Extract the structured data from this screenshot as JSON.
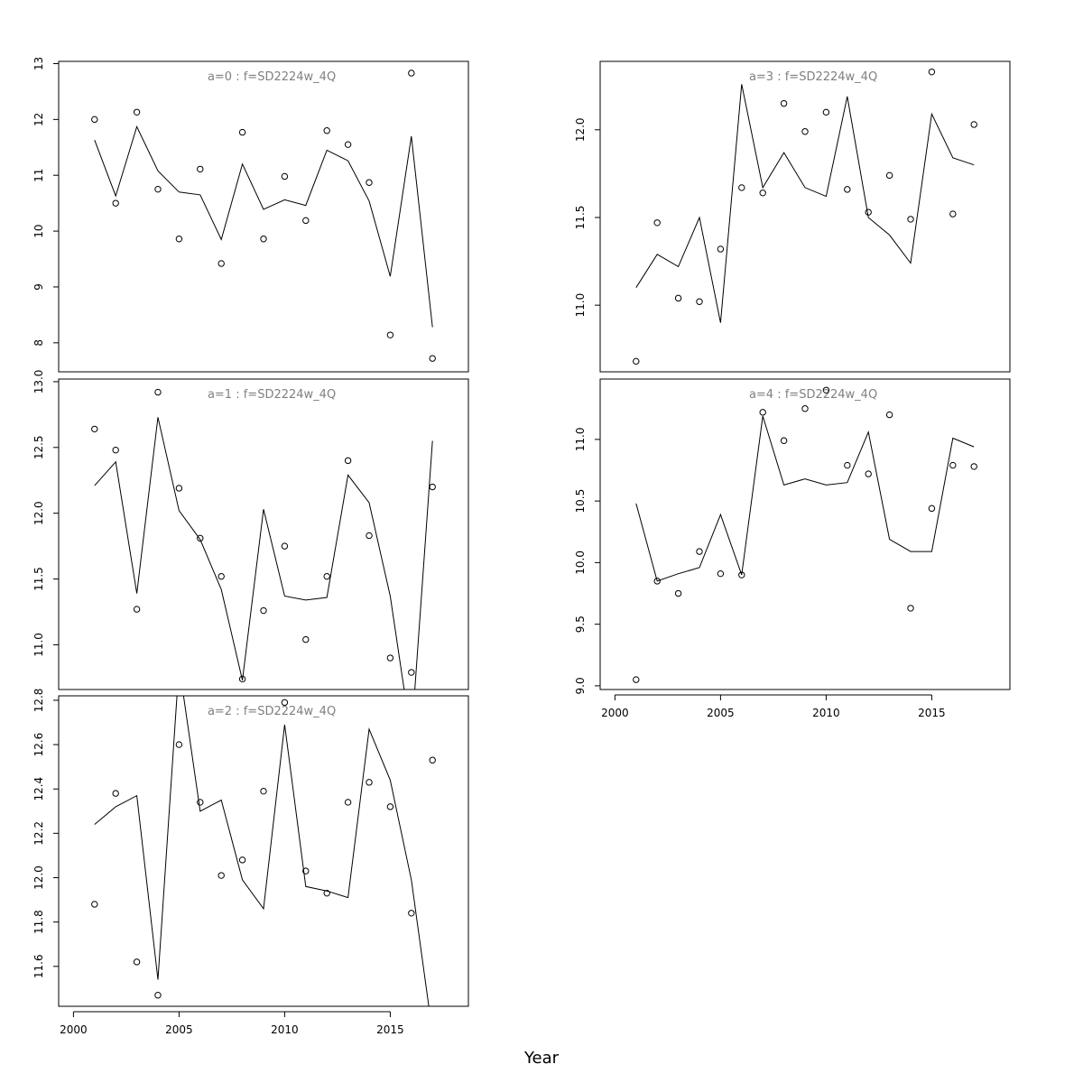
{
  "figure": {
    "xlabel": "Year"
  },
  "chart_data": [
    {
      "type": "scatter",
      "title": "a=0  :  f=SD2224w_4Q",
      "x": [
        2001,
        2002,
        2003,
        2004,
        2005,
        2006,
        2007,
        2008,
        2009,
        2010,
        2011,
        2012,
        2013,
        2014,
        2015,
        2016,
        2017
      ],
      "series": [
        {
          "kind": "points",
          "values": [
            12.0,
            10.5,
            12.13,
            10.75,
            9.86,
            11.11,
            9.42,
            11.77,
            9.86,
            10.98,
            10.19,
            11.8,
            11.55,
            10.87,
            8.14,
            12.83,
            7.72
          ]
        },
        {
          "kind": "line",
          "values": [
            11.63,
            10.63,
            11.87,
            11.08,
            10.7,
            10.65,
            9.85,
            11.2,
            10.39,
            10.56,
            10.46,
            11.45,
            11.26,
            10.54,
            9.19,
            11.7,
            8.28
          ]
        }
      ],
      "xlim": [
        1999.3,
        2018.7
      ],
      "ylim": [
        7.48,
        13.04
      ],
      "yticks": [
        8,
        9,
        10,
        11,
        12,
        13
      ],
      "ytick_labels": [
        "8",
        "9",
        "10",
        "11",
        "12",
        "13"
      ],
      "xticks_shown": false
    },
    {
      "type": "scatter",
      "title": "a=1  :  f=SD2224w_4Q",
      "x": [
        2001,
        2002,
        2003,
        2004,
        2005,
        2006,
        2007,
        2008,
        2009,
        2010,
        2011,
        2012,
        2013,
        2014,
        2015,
        2016,
        2017
      ],
      "series": [
        {
          "kind": "points",
          "values": [
            12.64,
            12.48,
            11.27,
            12.92,
            12.19,
            11.81,
            11.52,
            10.74,
            11.26,
            11.75,
            11.04,
            11.52,
            12.4,
            11.83,
            10.9,
            10.79,
            12.2
          ]
        },
        {
          "kind": "line",
          "values": [
            12.21,
            12.39,
            11.39,
            12.73,
            12.02,
            11.8,
            11.42,
            10.73,
            12.03,
            11.37,
            11.34,
            11.36,
            12.29,
            12.08,
            11.37,
            10.29,
            12.55
          ]
        }
      ],
      "xlim": [
        1999.3,
        2018.7
      ],
      "ylim": [
        10.66,
        13.02
      ],
      "yticks": [
        11.0,
        11.5,
        12.0,
        12.5,
        13.0
      ],
      "ytick_labels": [
        "11.0",
        "11.5",
        "12.0",
        "12.5",
        "13.0"
      ],
      "xticks_shown": false
    },
    {
      "type": "scatter",
      "title": "a=2  :  f=SD2224w_4Q",
      "x": [
        2001,
        2002,
        2003,
        2004,
        2005,
        2006,
        2007,
        2008,
        2009,
        2010,
        2011,
        2012,
        2013,
        2014,
        2015,
        2016,
        2017
      ],
      "series": [
        {
          "kind": "points",
          "values": [
            11.88,
            12.38,
            11.62,
            11.47,
            12.6,
            12.34,
            12.01,
            12.08,
            12.39,
            12.79,
            12.03,
            11.93,
            12.34,
            12.43,
            12.32,
            11.84,
            12.53
          ]
        },
        {
          "kind": "line",
          "values": [
            12.24,
            12.32,
            12.37,
            11.54,
            12.96,
            12.3,
            12.35,
            11.99,
            11.86,
            12.69,
            11.96,
            11.94,
            11.91,
            12.67,
            12.44,
            11.99,
            11.3
          ]
        }
      ],
      "xlim": [
        1999.3,
        2018.7
      ],
      "ylim": [
        11.42,
        12.82
      ],
      "yticks": [
        11.6,
        11.8,
        12.0,
        12.2,
        12.4,
        12.6,
        12.8
      ],
      "ytick_labels": [
        "11.6",
        "11.8",
        "12.0",
        "12.2",
        "12.4",
        "12.6",
        "12.8"
      ],
      "xticks": [
        2000,
        2005,
        2010,
        2015
      ],
      "xtick_labels": [
        "2000",
        "2005",
        "2010",
        "2015"
      ],
      "xticks_shown": true
    },
    {
      "type": "scatter",
      "title": "a=3  :  f=SD2224w_4Q",
      "x": [
        2001,
        2002,
        2003,
        2004,
        2005,
        2006,
        2007,
        2008,
        2009,
        2010,
        2011,
        2012,
        2013,
        2014,
        2015,
        2016,
        2017
      ],
      "series": [
        {
          "kind": "points",
          "values": [
            10.68,
            11.47,
            11.04,
            11.02,
            11.32,
            11.67,
            11.64,
            12.15,
            11.99,
            12.1,
            11.66,
            11.53,
            11.74,
            11.49,
            12.33,
            11.52,
            12.03
          ]
        },
        {
          "kind": "line",
          "values": [
            11.1,
            11.29,
            11.22,
            11.5,
            10.9,
            12.26,
            11.67,
            11.87,
            11.67,
            11.62,
            12.19,
            11.5,
            11.4,
            11.24,
            12.09,
            11.84,
            11.8
          ]
        }
      ],
      "xlim": [
        1999.3,
        2018.7
      ],
      "ylim": [
        10.62,
        12.39
      ],
      "yticks": [
        11.0,
        11.5,
        12.0
      ],
      "ytick_labels": [
        "11.0",
        "11.5",
        "12.0"
      ],
      "xticks_shown": false
    },
    {
      "type": "scatter",
      "title": "a=4  :  f=SD2224w_4Q",
      "x": [
        2001,
        2002,
        2003,
        2004,
        2005,
        2006,
        2007,
        2008,
        2009,
        2010,
        2011,
        2012,
        2013,
        2014,
        2015,
        2016,
        2017
      ],
      "series": [
        {
          "kind": "points",
          "values": [
            9.05,
            9.85,
            9.75,
            10.09,
            9.91,
            9.9,
            11.22,
            10.99,
            11.25,
            11.4,
            10.79,
            10.72,
            11.2,
            9.63,
            10.44,
            10.79,
            10.78
          ]
        },
        {
          "kind": "line",
          "values": [
            10.48,
            9.85,
            9.91,
            9.96,
            10.39,
            9.9,
            11.19,
            10.63,
            10.68,
            10.63,
            10.65,
            11.06,
            10.19,
            10.09,
            10.09,
            11.01,
            10.94
          ]
        }
      ],
      "xlim": [
        1999.3,
        2018.7
      ],
      "ylim": [
        8.97,
        11.49
      ],
      "yticks": [
        9.0,
        9.5,
        10.0,
        10.5,
        11.0
      ],
      "ytick_labels": [
        "9.0",
        "9.5",
        "10.0",
        "10.5",
        "11.0"
      ],
      "xticks": [
        2000,
        2005,
        2010,
        2015
      ],
      "xtick_labels": [
        "2000",
        "2005",
        "2010",
        "2015"
      ],
      "xticks_shown": true
    }
  ]
}
